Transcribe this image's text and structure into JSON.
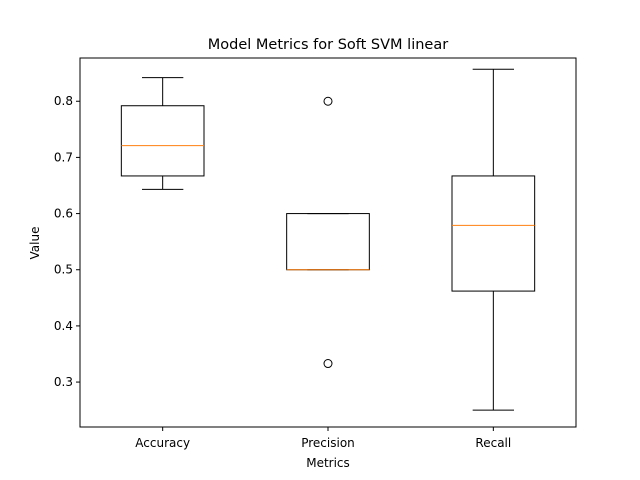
{
  "chart_data": {
    "type": "box",
    "title": "Model Metrics for Soft SVM linear",
    "xlabel": "Metrics",
    "ylabel": "Value",
    "ylim": [
      0.22,
      0.877
    ],
    "yticks": [
      0.3,
      0.4,
      0.5,
      0.6,
      0.7,
      0.8
    ],
    "ytick_labels": [
      "0.3",
      "0.4",
      "0.5",
      "0.6",
      "0.7",
      "0.8"
    ],
    "categories": [
      "Accuracy",
      "Precision",
      "Recall"
    ],
    "boxes": [
      {
        "category": "Accuracy",
        "whisker_low": 0.643,
        "q1": 0.667,
        "median": 0.721,
        "q3": 0.792,
        "whisker_high": 0.842,
        "outliers": []
      },
      {
        "category": "Precision",
        "whisker_low": 0.5,
        "q1": 0.5,
        "median": 0.5,
        "q3": 0.6,
        "whisker_high": 0.6,
        "outliers": [
          0.8,
          0.333
        ]
      },
      {
        "category": "Recall",
        "whisker_low": 0.25,
        "q1": 0.462,
        "median": 0.579,
        "q3": 0.667,
        "whisker_high": 0.857,
        "outliers": []
      }
    ],
    "colors": {
      "box": "#000000",
      "median": "#ff7f0e"
    },
    "grid": false,
    "legend": "none"
  }
}
